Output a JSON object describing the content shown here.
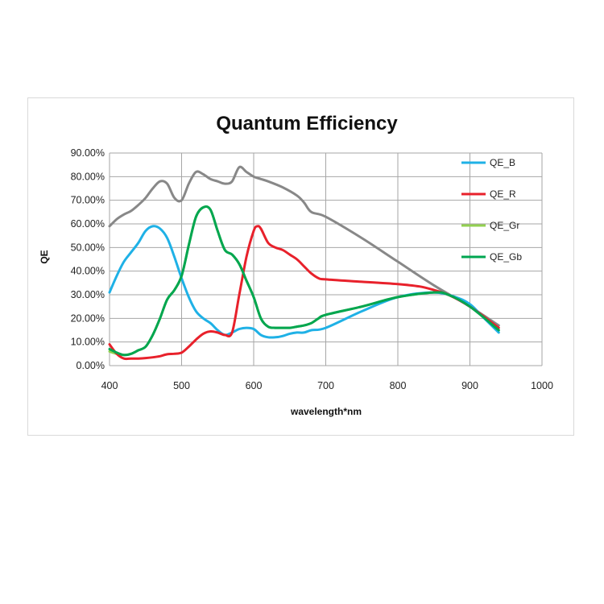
{
  "chart_data": {
    "type": "line",
    "title": "Quantum Efficiency",
    "xlabel": "wavelength*nm",
    "ylabel": "QE",
    "xlim": [
      400,
      1000
    ],
    "ylim": [
      0,
      0.9
    ],
    "x_ticks": [
      400,
      500,
      600,
      700,
      800,
      900,
      1000
    ],
    "x_tick_labels": [
      "400",
      "500",
      "600",
      "700",
      "800",
      "900",
      "1000"
    ],
    "y_ticks": [
      0,
      0.1,
      0.2,
      0.3,
      0.4,
      0.5,
      0.6,
      0.7,
      0.8,
      0.9
    ],
    "y_tick_labels": [
      "0.00%",
      "10.00%",
      "20.00%",
      "30.00%",
      "40.00%",
      "50.00%",
      "60.00%",
      "70.00%",
      "80.00%",
      "90.00%"
    ],
    "grid": true,
    "legend_position": "right",
    "series": [
      {
        "name": "QE_B",
        "color": "#1fb1e6",
        "x": [
          400,
          410,
          420,
          430,
          440,
          450,
          460,
          470,
          480,
          490,
          500,
          510,
          520,
          530,
          540,
          550,
          560,
          570,
          580,
          590,
          600,
          610,
          620,
          630,
          640,
          650,
          660,
          670,
          680,
          700,
          750,
          800,
          850,
          880,
          900,
          920,
          940
        ],
        "y": [
          0.31,
          0.38,
          0.44,
          0.48,
          0.52,
          0.57,
          0.59,
          0.58,
          0.54,
          0.46,
          0.37,
          0.29,
          0.23,
          0.2,
          0.18,
          0.15,
          0.13,
          0.14,
          0.155,
          0.16,
          0.155,
          0.13,
          0.12,
          0.12,
          0.125,
          0.135,
          0.14,
          0.14,
          0.15,
          0.16,
          0.23,
          0.29,
          0.31,
          0.29,
          0.26,
          0.2,
          0.14
        ]
      },
      {
        "name": "QE_R",
        "color": "#e8212b",
        "x": [
          400,
          410,
          420,
          430,
          440,
          450,
          460,
          470,
          480,
          490,
          500,
          510,
          520,
          530,
          540,
          550,
          560,
          570,
          580,
          590,
          600,
          605,
          610,
          620,
          630,
          640,
          650,
          660,
          670,
          680,
          690,
          700,
          750,
          800,
          830,
          850,
          870,
          900,
          940
        ],
        "y": [
          0.09,
          0.05,
          0.03,
          0.03,
          0.03,
          0.032,
          0.035,
          0.04,
          0.048,
          0.05,
          0.055,
          0.08,
          0.11,
          0.135,
          0.145,
          0.14,
          0.13,
          0.14,
          0.3,
          0.46,
          0.57,
          0.59,
          0.58,
          0.52,
          0.5,
          0.49,
          0.47,
          0.45,
          0.42,
          0.39,
          0.37,
          0.365,
          0.355,
          0.345,
          0.335,
          0.32,
          0.3,
          0.25,
          0.16
        ]
      },
      {
        "name": "QE_Gr",
        "color": "#92d050",
        "x": [
          400,
          410,
          420,
          430,
          440,
          450,
          460,
          470,
          480,
          490,
          500,
          510,
          520,
          530,
          540,
          550,
          560,
          570,
          580,
          590,
          600,
          610,
          620,
          630,
          640,
          650,
          660,
          670,
          680,
          690,
          700,
          750,
          800,
          850,
          870,
          900,
          940
        ],
        "y": [
          0.06,
          0.05,
          0.045,
          0.05,
          0.065,
          0.08,
          0.13,
          0.2,
          0.28,
          0.32,
          0.38,
          0.51,
          0.63,
          0.67,
          0.66,
          0.57,
          0.49,
          0.47,
          0.43,
          0.36,
          0.29,
          0.2,
          0.165,
          0.16,
          0.16,
          0.16,
          0.165,
          0.17,
          0.18,
          0.2,
          0.215,
          0.25,
          0.29,
          0.31,
          0.3,
          0.25,
          0.15
        ]
      },
      {
        "name": "QE_Gb",
        "color": "#00a650",
        "x": [
          400,
          410,
          420,
          430,
          440,
          450,
          460,
          470,
          480,
          490,
          500,
          510,
          520,
          530,
          540,
          550,
          560,
          570,
          580,
          590,
          600,
          610,
          620,
          630,
          640,
          650,
          660,
          670,
          680,
          690,
          700,
          750,
          800,
          850,
          870,
          900,
          940
        ],
        "y": [
          0.07,
          0.055,
          0.045,
          0.05,
          0.065,
          0.08,
          0.13,
          0.2,
          0.28,
          0.32,
          0.38,
          0.51,
          0.63,
          0.67,
          0.66,
          0.57,
          0.49,
          0.47,
          0.43,
          0.36,
          0.29,
          0.2,
          0.165,
          0.16,
          0.16,
          0.16,
          0.165,
          0.17,
          0.18,
          0.2,
          0.215,
          0.25,
          0.29,
          0.31,
          0.3,
          0.25,
          0.15
        ]
      },
      {
        "name": "",
        "color": "#888888",
        "x": [
          400,
          410,
          420,
          430,
          440,
          450,
          460,
          470,
          480,
          490,
          500,
          510,
          520,
          530,
          540,
          550,
          560,
          570,
          580,
          590,
          600,
          610,
          620,
          640,
          660,
          670,
          680,
          700,
          750,
          800,
          850,
          900,
          940
        ],
        "y": [
          0.59,
          0.62,
          0.64,
          0.655,
          0.68,
          0.71,
          0.75,
          0.78,
          0.77,
          0.71,
          0.7,
          0.77,
          0.82,
          0.81,
          0.79,
          0.78,
          0.77,
          0.78,
          0.84,
          0.82,
          0.8,
          0.79,
          0.78,
          0.755,
          0.72,
          0.69,
          0.65,
          0.63,
          0.54,
          0.44,
          0.34,
          0.25,
          0.17
        ]
      }
    ]
  }
}
